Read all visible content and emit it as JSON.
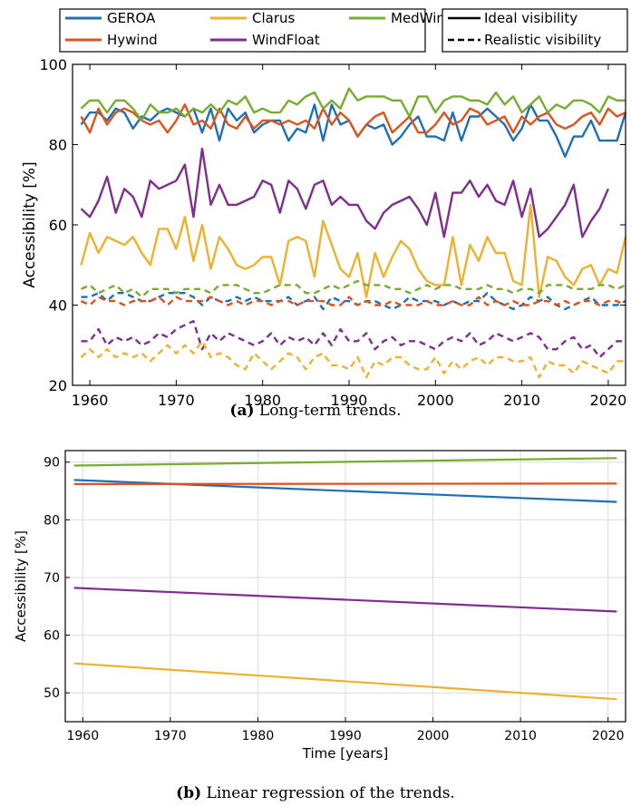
{
  "colors": {
    "GEROA": "#1f6fb5",
    "Hywind": "#d9541e",
    "Clarus": "#ecb22e",
    "WindFloat": "#7e2f8e",
    "MedWind": "#77ac30"
  },
  "chart_data": [
    {
      "panel": "a",
      "type": "line",
      "caption_label": "(a)",
      "caption_text": " Long-term trends.",
      "xlabel": "",
      "ylabel": "Accessibility [%]",
      "xlim": [
        1958,
        2022
      ],
      "ylim": [
        20,
        100
      ],
      "xticks": [
        1960,
        1970,
        1980,
        1990,
        2000,
        2010,
        2020
      ],
      "yticks": [
        20,
        40,
        60,
        80,
        100
      ],
      "grid": false,
      "legend_series": [
        "GEROA",
        "Clarus",
        "MedWind",
        "Hywind",
        "WindFloat"
      ],
      "legend_style": [
        {
          "label": "Ideal visibility",
          "dash": false
        },
        {
          "label": "Realistic visibility",
          "dash": true
        }
      ],
      "x_start": 1959,
      "series": [
        {
          "name": "GEROA",
          "style": "ideal",
          "values": [
            85,
            88,
            88,
            86,
            89,
            88,
            84,
            87,
            86,
            88,
            89,
            88,
            87,
            89,
            83,
            89,
            81,
            89,
            86,
            88,
            83,
            85,
            86,
            86,
            81,
            84,
            83,
            90,
            81,
            90,
            85,
            86,
            82,
            85,
            84,
            85,
            80,
            82,
            85,
            87,
            82,
            82,
            81,
            88,
            81,
            87,
            87,
            89,
            87,
            85,
            81,
            84,
            90,
            86,
            86,
            82,
            77,
            82,
            82,
            86,
            81,
            81,
            81,
            88
          ]
        },
        {
          "name": "Hywind",
          "style": "ideal",
          "values": [
            87,
            83,
            89,
            85,
            88,
            89,
            88,
            86,
            85,
            86,
            83,
            86,
            90,
            85,
            86,
            84,
            89,
            85,
            84,
            87,
            84,
            86,
            86,
            85,
            86,
            85,
            86,
            84,
            89,
            85,
            88,
            86,
            82,
            85,
            87,
            88,
            83,
            85,
            87,
            83,
            83,
            85,
            88,
            85,
            86,
            89,
            88,
            85,
            86,
            87,
            83,
            87,
            85,
            87,
            88,
            85,
            84,
            85,
            87,
            88,
            85,
            89,
            87,
            88
          ]
        },
        {
          "name": "MedWind",
          "style": "ideal",
          "values": [
            89,
            91,
            91,
            88,
            91,
            91,
            89,
            86,
            90,
            88,
            88,
            89,
            87,
            89,
            88,
            90,
            88,
            91,
            90,
            92,
            88,
            89,
            88,
            88,
            91,
            90,
            92,
            93,
            89,
            91,
            89,
            94,
            91,
            92,
            92,
            92,
            91,
            91,
            87,
            92,
            92,
            88,
            91,
            92,
            92,
            91,
            91,
            90,
            93,
            90,
            92,
            88,
            90,
            92,
            88,
            90,
            89,
            91,
            91,
            90,
            88,
            92,
            91,
            91
          ]
        },
        {
          "name": "WindFloat",
          "style": "ideal",
          "values": [
            64,
            62,
            66,
            72,
            63,
            69,
            67,
            62,
            71,
            69,
            70,
            71,
            75,
            62,
            79,
            65,
            70,
            65,
            65,
            66,
            67,
            71,
            70,
            63,
            71,
            69,
            64,
            70,
            71,
            65,
            67,
            65,
            65,
            61,
            59,
            63,
            65,
            66,
            67,
            64,
            60,
            68,
            57,
            68,
            68,
            71,
            67,
            70,
            66,
            65,
            71,
            62,
            69,
            57,
            59,
            62,
            65,
            70,
            57,
            61,
            64,
            69
          ]
        },
        {
          "name": "Clarus",
          "style": "ideal",
          "values": [
            50,
            58,
            53,
            57,
            56,
            55,
            57,
            53,
            50,
            59,
            59,
            54,
            62,
            51,
            60,
            49,
            57,
            54,
            50,
            49,
            50,
            52,
            52,
            45,
            56,
            57,
            56,
            47,
            61,
            55,
            49,
            47,
            53,
            42,
            53,
            47,
            52,
            56,
            54,
            49,
            46,
            45,
            45,
            57,
            45,
            55,
            51,
            57,
            53,
            53,
            46,
            45,
            65,
            42,
            52,
            51,
            47,
            45,
            49,
            50,
            45,
            49,
            48,
            57
          ]
        },
        {
          "name": "GEROA",
          "style": "realistic",
          "values": [
            42,
            42,
            43,
            41,
            43,
            43,
            42,
            41,
            41,
            42,
            43,
            43,
            43,
            42,
            40,
            42,
            41,
            41,
            42,
            41,
            42,
            41,
            41,
            41,
            42,
            40,
            41,
            42,
            39,
            42,
            41,
            41,
            40,
            41,
            41,
            40,
            39,
            40,
            42,
            41,
            41,
            41,
            40,
            41,
            40,
            41,
            41,
            43,
            41,
            40,
            39,
            40,
            42,
            41,
            42,
            40,
            39,
            40,
            41,
            42,
            40,
            40,
            40,
            41
          ]
        },
        {
          "name": "Hywind",
          "style": "realistic",
          "values": [
            41,
            40,
            42,
            41,
            41,
            40,
            41,
            41,
            41,
            42,
            40,
            42,
            41,
            41,
            41,
            42,
            41,
            40,
            41,
            40,
            41,
            41,
            40,
            41,
            41,
            40,
            41,
            41,
            41,
            40,
            40,
            42,
            40,
            41,
            40,
            40,
            41,
            40,
            40,
            40,
            41,
            40,
            40,
            41,
            40,
            40,
            42,
            40,
            41,
            40,
            41,
            40,
            40,
            41,
            41,
            40,
            41,
            40,
            41,
            41,
            40,
            41,
            41,
            40
          ]
        },
        {
          "name": "MedWind",
          "style": "realistic",
          "values": [
            44,
            45,
            43,
            44,
            45,
            43,
            44,
            42,
            44,
            44,
            44,
            43,
            44,
            44,
            44,
            43,
            45,
            45,
            45,
            44,
            43,
            43,
            44,
            45,
            45,
            45,
            43,
            43,
            44,
            45,
            44,
            45,
            46,
            45,
            45,
            45,
            44,
            44,
            43,
            44,
            45,
            44,
            45,
            45,
            44,
            44,
            44,
            45,
            44,
            44,
            43,
            44,
            44,
            43,
            45,
            45,
            45,
            44,
            44,
            44,
            45,
            45,
            44,
            45
          ]
        },
        {
          "name": "WindFloat",
          "style": "realistic",
          "values": [
            31,
            31,
            34,
            30,
            32,
            31,
            32,
            30,
            31,
            33,
            32,
            34,
            35,
            36,
            29,
            33,
            31,
            33,
            32,
            31,
            30,
            31,
            33,
            30,
            32,
            31,
            32,
            30,
            33,
            30,
            34,
            31,
            31,
            33,
            29,
            31,
            32,
            30,
            31,
            31,
            30,
            29,
            31,
            32,
            31,
            33,
            30,
            31,
            33,
            32,
            31,
            32,
            33,
            32,
            29,
            29,
            31,
            32,
            29,
            30,
            27,
            29,
            31,
            31
          ]
        },
        {
          "name": "Clarus",
          "style": "realistic",
          "values": [
            27,
            29,
            27,
            29,
            27,
            28,
            27,
            28,
            26,
            28,
            30,
            28,
            30,
            28,
            31,
            27,
            28,
            27,
            25,
            24,
            28,
            26,
            24,
            26,
            28,
            27,
            24,
            27,
            28,
            25,
            25,
            24,
            27,
            22,
            26,
            25,
            27,
            27,
            25,
            24,
            24,
            27,
            23,
            26,
            24,
            26,
            27,
            25,
            27,
            27,
            26,
            26,
            27,
            22,
            26,
            25,
            25,
            23,
            26,
            25,
            24,
            23,
            26,
            26
          ]
        }
      ]
    },
    {
      "panel": "b",
      "type": "line",
      "caption_label": "(b)",
      "caption_text": " Linear regression of the trends.",
      "xlabel": "Time [years]",
      "ylabel": "Accessibility [%]",
      "xlim": [
        1958,
        2022
      ],
      "ylim": [
        45,
        92
      ],
      "xticks": [
        1960,
        1970,
        1980,
        1990,
        2000,
        2010,
        2020
      ],
      "yticks": [
        50,
        60,
        70,
        80,
        90
      ],
      "grid": true,
      "series": [
        {
          "name": "MedWind",
          "x": [
            1959,
            2021
          ],
          "values": [
            89.4,
            90.7
          ]
        },
        {
          "name": "GEROA",
          "x": [
            1959,
            2021
          ],
          "values": [
            86.9,
            83.1
          ]
        },
        {
          "name": "Hywind",
          "x": [
            1959,
            2021
          ],
          "values": [
            86.2,
            86.3
          ]
        },
        {
          "name": "WindFloat",
          "x": [
            1959,
            2021
          ],
          "values": [
            68.2,
            64.1
          ]
        },
        {
          "name": "Clarus",
          "x": [
            1959,
            2021
          ],
          "values": [
            55.1,
            48.9
          ]
        }
      ]
    }
  ]
}
